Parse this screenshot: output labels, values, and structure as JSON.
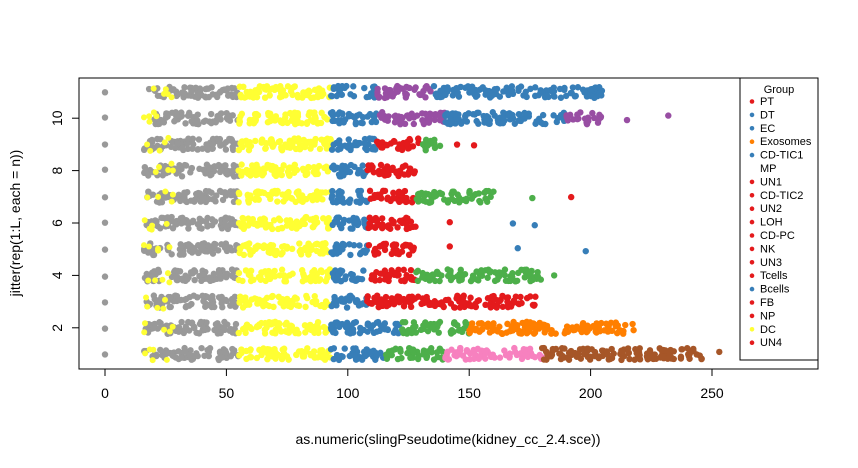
{
  "chart_data": {
    "type": "scatter",
    "title": "",
    "xlabel": "as.numeric(slingPseudotime(kidney_cc_2.4.sce))",
    "ylabel": "jitter(rep(1:L, each = n))",
    "xlim": [
      -10,
      295
    ],
    "ylim": [
      0.5,
      11.8
    ],
    "x_ticks": [
      0,
      50,
      100,
      150,
      200,
      250
    ],
    "y_ticks": [
      2,
      4,
      6,
      8,
      10
    ],
    "legend": {
      "title": "Group",
      "position": "right",
      "entries": [
        {
          "label": "PT",
          "color": "#E41A1C"
        },
        {
          "label": "DT",
          "color": "#377EB8"
        },
        {
          "label": "EC",
          "color": "#377EB8"
        },
        {
          "label": "Exosomes",
          "color": "#FF7F00"
        },
        {
          "label": "CD-TIC1",
          "color": "#377EB8"
        },
        {
          "label": "MP",
          "color": "#FFFFFF"
        },
        {
          "label": "UN1",
          "color": "#E41A1C"
        },
        {
          "label": "CD-TIC2",
          "color": "#E41A1C"
        },
        {
          "label": "UN2",
          "color": "#E41A1C"
        },
        {
          "label": "LOH",
          "color": "#E41A1C"
        },
        {
          "label": "CD-PC",
          "color": "#E41A1C"
        },
        {
          "label": "NK",
          "color": "#E41A1C"
        },
        {
          "label": "UN3",
          "color": "#E41A1C"
        },
        {
          "label": "Tcells",
          "color": "#E41A1C"
        },
        {
          "label": "Bcells",
          "color": "#377EB8"
        },
        {
          "label": "FB",
          "color": "#E41A1C"
        },
        {
          "label": "NP",
          "color": "#E41A1C"
        },
        {
          "label": "DC",
          "color": "#FFFF33"
        },
        {
          "label": "UN4",
          "color": "#E41A1C"
        }
      ]
    },
    "series": [
      {
        "lineage": 1,
        "outlier_x": [
          0
        ],
        "segments": [
          [
            16,
            55,
            "#999999"
          ],
          [
            55,
            93,
            "#FFFF33"
          ],
          [
            93,
            115,
            "#377EB8"
          ],
          [
            115,
            140,
            "#4DAF4A"
          ],
          [
            140,
            180,
            "#F781BF"
          ],
          [
            180,
            248,
            "#A65628"
          ]
        ],
        "extra_points": [
          [
            253,
            "#A65628"
          ]
        ]
      },
      {
        "lineage": 2,
        "outlier_x": [
          0
        ],
        "segments": [
          [
            16,
            55,
            "#999999"
          ],
          [
            55,
            93,
            "#FFFF33"
          ],
          [
            93,
            122,
            "#377EB8"
          ],
          [
            122,
            150,
            "#4DAF4A"
          ],
          [
            150,
            220,
            "#FF7F00"
          ]
        ],
        "extra_points": []
      },
      {
        "lineage": 3,
        "outlier_x": [
          0
        ],
        "segments": [
          [
            16,
            55,
            "#999999"
          ],
          [
            55,
            93,
            "#FFFF33"
          ],
          [
            93,
            108,
            "#377EB8"
          ],
          [
            108,
            178,
            "#E41A1C"
          ]
        ],
        "extra_points": []
      },
      {
        "lineage": 4,
        "outlier_x": [
          0
        ],
        "segments": [
          [
            16,
            55,
            "#999999"
          ],
          [
            55,
            93,
            "#FFFF33"
          ],
          [
            93,
            108,
            "#377EB8"
          ],
          [
            108,
            128,
            "#E41A1C"
          ],
          [
            128,
            180,
            "#4DAF4A"
          ]
        ],
        "extra_points": [
          [
            185,
            "#4DAF4A"
          ]
        ]
      },
      {
        "lineage": 5,
        "outlier_x": [
          0
        ],
        "segments": [
          [
            16,
            55,
            "#999999"
          ],
          [
            55,
            93,
            "#FFFF33"
          ],
          [
            93,
            108,
            "#377EB8"
          ],
          [
            108,
            128,
            "#E41A1C"
          ]
        ],
        "extra_points": [
          [
            142,
            "#E41A1C"
          ],
          [
            170,
            "#377EB8"
          ],
          [
            198,
            "#377EB8"
          ]
        ]
      },
      {
        "lineage": 6,
        "outlier_x": [
          0
        ],
        "segments": [
          [
            16,
            55,
            "#999999"
          ],
          [
            55,
            93,
            "#FFFF33"
          ],
          [
            93,
            108,
            "#377EB8"
          ],
          [
            108,
            128,
            "#E41A1C"
          ]
        ],
        "extra_points": [
          [
            142,
            "#E41A1C"
          ],
          [
            168,
            "#377EB8"
          ],
          [
            177,
            "#377EB8"
          ]
        ]
      },
      {
        "lineage": 7,
        "outlier_x": [
          0
        ],
        "segments": [
          [
            16,
            55,
            "#999999"
          ],
          [
            55,
            93,
            "#FFFF33"
          ],
          [
            93,
            108,
            "#377EB8"
          ],
          [
            108,
            128,
            "#E41A1C"
          ],
          [
            128,
            160,
            "#4DAF4A"
          ]
        ],
        "extra_points": [
          [
            176,
            "#4DAF4A"
          ],
          [
            192,
            "#E41A1C"
          ]
        ]
      },
      {
        "lineage": 8,
        "outlier_x": [
          0
        ],
        "segments": [
          [
            16,
            55,
            "#999999"
          ],
          [
            55,
            93,
            "#FFFF33"
          ],
          [
            93,
            108,
            "#377EB8"
          ],
          [
            108,
            128,
            "#E41A1C"
          ]
        ],
        "extra_points": []
      },
      {
        "lineage": 9,
        "outlier_x": [
          0
        ],
        "segments": [
          [
            16,
            55,
            "#999999"
          ],
          [
            55,
            93,
            "#FFFF33"
          ],
          [
            93,
            112,
            "#377EB8"
          ],
          [
            112,
            130,
            "#E41A1C"
          ],
          [
            130,
            138,
            "#4DAF4A"
          ]
        ],
        "extra_points": [
          [
            145,
            "#E41A1C"
          ],
          [
            152,
            "#E41A1C"
          ]
        ]
      },
      {
        "lineage": 10,
        "outlier_x": [
          0
        ],
        "segments": [
          [
            20,
            55,
            "#999999"
          ],
          [
            55,
            93,
            "#FFFF33"
          ],
          [
            93,
            112,
            "#377EB8"
          ],
          [
            112,
            140,
            "#984EA3"
          ],
          [
            140,
            190,
            "#377EB8"
          ],
          [
            190,
            205,
            "#984EA3"
          ]
        ],
        "extra_points": [
          [
            215,
            "#984EA3"
          ],
          [
            232,
            "#984EA3"
          ]
        ]
      },
      {
        "lineage": 11,
        "outlier_x": [
          0
        ],
        "segments": [
          [
            18,
            55,
            "#999999"
          ],
          [
            55,
            93,
            "#FFFF33"
          ],
          [
            93,
            112,
            "#377EB8"
          ],
          [
            112,
            135,
            "#984EA3"
          ],
          [
            135,
            205,
            "#377EB8"
          ]
        ],
        "extra_points": []
      }
    ]
  }
}
